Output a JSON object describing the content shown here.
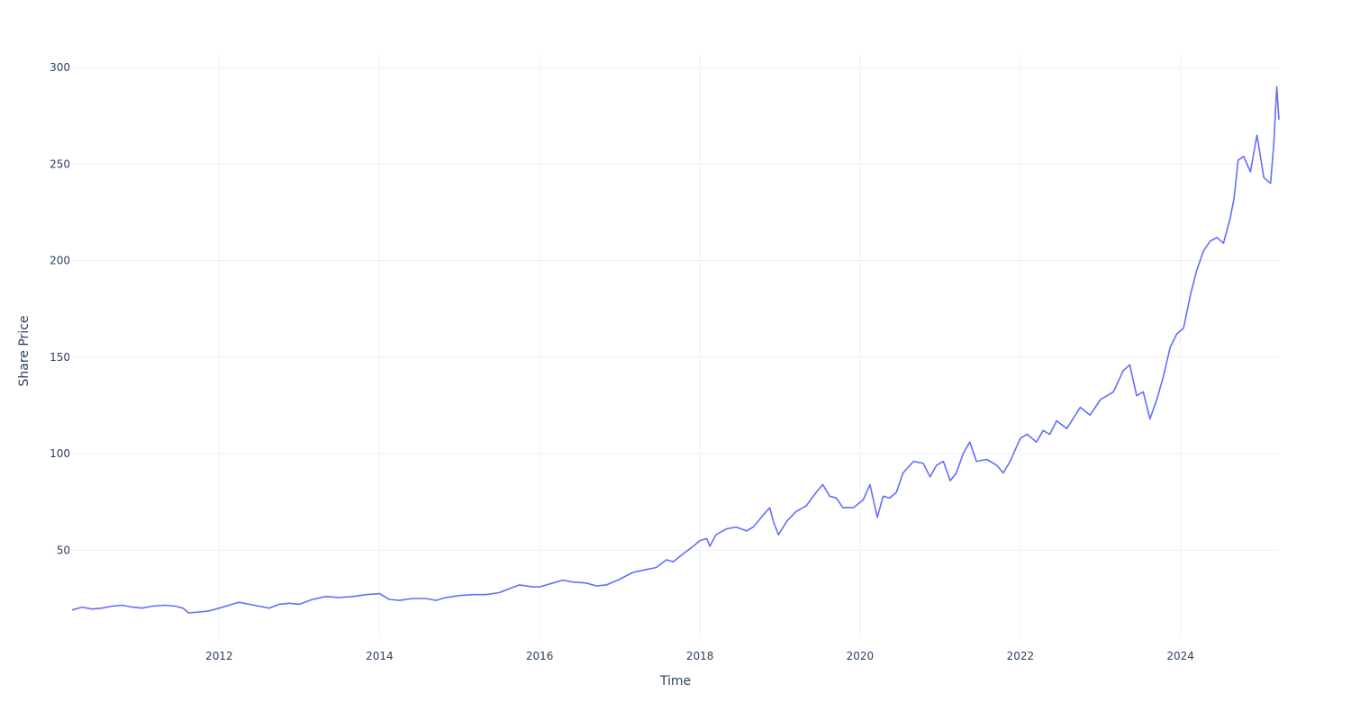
{
  "chart_data": {
    "type": "line",
    "title": "",
    "xlabel": "Time",
    "ylabel": "Share Price",
    "xlim": [
      "2010-03-01",
      "2025-03-25"
    ],
    "ylim": [
      4,
      307
    ],
    "x_ticks": [
      "2012",
      "2014",
      "2016",
      "2018",
      "2020",
      "2022",
      "2024"
    ],
    "y_ticks": [
      50,
      100,
      150,
      200,
      250,
      300
    ],
    "grid": true,
    "legend": "none",
    "series": [
      {
        "color": "#636efa",
        "points": [
          [
            "2010-03-01",
            19
          ],
          [
            "2010-04-15",
            20.5
          ],
          [
            "2010-06-01",
            19.5
          ],
          [
            "2010-07-15",
            20
          ],
          [
            "2010-09-01",
            21
          ],
          [
            "2010-10-15",
            21.5
          ],
          [
            "2010-12-01",
            20.5
          ],
          [
            "2011-01-15",
            20
          ],
          [
            "2011-03-01",
            21
          ],
          [
            "2011-05-01",
            21.5
          ],
          [
            "2011-06-15",
            21
          ],
          [
            "2011-07-20",
            20
          ],
          [
            "2011-08-15",
            17.5
          ],
          [
            "2011-10-01",
            18
          ],
          [
            "2011-11-15",
            18.5
          ],
          [
            "2012-01-01",
            20
          ],
          [
            "2012-03-01",
            22
          ],
          [
            "2012-04-01",
            23
          ],
          [
            "2012-05-15",
            22
          ],
          [
            "2012-07-01",
            21
          ],
          [
            "2012-08-15",
            20
          ],
          [
            "2012-10-01",
            22
          ],
          [
            "2012-11-15",
            22.5
          ],
          [
            "2013-01-01",
            22
          ],
          [
            "2013-03-01",
            24.5
          ],
          [
            "2013-05-01",
            26
          ],
          [
            "2013-07-01",
            25.5
          ],
          [
            "2013-09-01",
            26
          ],
          [
            "2013-11-01",
            27
          ],
          [
            "2014-01-01",
            27.5
          ],
          [
            "2014-02-15",
            24.5
          ],
          [
            "2014-04-01",
            24
          ],
          [
            "2014-06-01",
            25
          ],
          [
            "2014-08-01",
            25
          ],
          [
            "2014-09-15",
            24
          ],
          [
            "2014-11-01",
            25.5
          ],
          [
            "2015-01-01",
            26.5
          ],
          [
            "2015-03-01",
            27
          ],
          [
            "2015-05-01",
            27
          ],
          [
            "2015-07-01",
            28
          ],
          [
            "2015-08-15",
            30
          ],
          [
            "2015-10-01",
            32
          ],
          [
            "2015-12-01",
            31
          ],
          [
            "2016-01-01",
            31
          ],
          [
            "2016-03-01",
            33
          ],
          [
            "2016-04-15",
            34.5
          ],
          [
            "2016-06-01",
            33.5
          ],
          [
            "2016-08-01",
            33
          ],
          [
            "2016-09-15",
            31.5
          ],
          [
            "2016-11-01",
            32
          ],
          [
            "2017-01-01",
            35
          ],
          [
            "2017-03-01",
            38.5
          ],
          [
            "2017-05-01",
            40
          ],
          [
            "2017-06-15",
            41
          ],
          [
            "2017-08-01",
            45
          ],
          [
            "2017-09-01",
            44
          ],
          [
            "2017-10-15",
            48
          ],
          [
            "2017-12-01",
            52
          ],
          [
            "2018-01-01",
            55
          ],
          [
            "2018-02-01",
            56
          ],
          [
            "2018-02-15",
            52
          ],
          [
            "2018-03-15",
            58
          ],
          [
            "2018-05-01",
            61
          ],
          [
            "2018-06-15",
            62
          ],
          [
            "2018-08-01",
            60
          ],
          [
            "2018-09-01",
            62
          ],
          [
            "2018-10-15",
            68
          ],
          [
            "2018-11-15",
            72
          ],
          [
            "2018-12-01",
            65
          ],
          [
            "2018-12-25",
            58
          ],
          [
            "2019-02-01",
            65
          ],
          [
            "2019-03-15",
            70
          ],
          [
            "2019-05-01",
            73
          ],
          [
            "2019-06-15",
            80
          ],
          [
            "2019-07-15",
            84
          ],
          [
            "2019-08-15",
            78
          ],
          [
            "2019-09-15",
            77
          ],
          [
            "2019-10-15",
            72
          ],
          [
            "2019-12-01",
            72
          ],
          [
            "2020-01-15",
            76
          ],
          [
            "2020-02-15",
            84
          ],
          [
            "2020-03-20",
            67
          ],
          [
            "2020-04-15",
            78
          ],
          [
            "2020-05-15",
            77
          ],
          [
            "2020-06-15",
            80
          ],
          [
            "2020-07-15",
            90
          ],
          [
            "2020-09-01",
            96
          ],
          [
            "2020-10-15",
            95
          ],
          [
            "2020-11-15",
            88
          ],
          [
            "2020-12-15",
            94
          ],
          [
            "2021-01-15",
            96
          ],
          [
            "2021-02-15",
            86
          ],
          [
            "2021-03-15",
            90
          ],
          [
            "2021-04-15",
            100
          ],
          [
            "2021-05-15",
            106
          ],
          [
            "2021-06-15",
            96
          ],
          [
            "2021-08-01",
            97
          ],
          [
            "2021-09-15",
            94
          ],
          [
            "2021-10-15",
            90
          ],
          [
            "2021-11-15",
            96
          ],
          [
            "2022-01-01",
            108
          ],
          [
            "2022-02-01",
            110
          ],
          [
            "2022-03-15",
            106
          ],
          [
            "2022-04-15",
            112
          ],
          [
            "2022-05-15",
            110
          ],
          [
            "2022-06-15",
            117
          ],
          [
            "2022-08-01",
            113
          ],
          [
            "2022-10-01",
            124
          ],
          [
            "2022-11-15",
            120
          ],
          [
            "2023-01-01",
            128
          ],
          [
            "2023-03-01",
            132
          ],
          [
            "2023-04-15",
            143
          ],
          [
            "2023-05-15",
            146
          ],
          [
            "2023-06-15",
            130
          ],
          [
            "2023-07-15",
            132
          ],
          [
            "2023-08-15",
            118
          ],
          [
            "2023-09-15",
            128
          ],
          [
            "2023-10-15",
            140
          ],
          [
            "2023-11-15",
            155
          ],
          [
            "2023-12-15",
            162
          ],
          [
            "2024-01-15",
            165
          ],
          [
            "2024-02-15",
            182
          ],
          [
            "2024-03-15",
            195
          ],
          [
            "2024-04-15",
            205
          ],
          [
            "2024-05-15",
            210
          ],
          [
            "2024-06-15",
            212
          ],
          [
            "2024-07-15",
            209
          ],
          [
            "2024-08-15",
            222
          ],
          [
            "2024-09-01",
            232
          ],
          [
            "2024-09-20",
            252
          ],
          [
            "2024-10-15",
            254
          ],
          [
            "2024-11-15",
            246
          ],
          [
            "2024-12-15",
            265
          ],
          [
            "2025-01-15",
            243
          ],
          [
            "2025-02-15",
            240
          ],
          [
            "2025-03-01",
            260
          ],
          [
            "2025-03-15",
            290
          ],
          [
            "2025-03-25",
            273
          ]
        ]
      }
    ]
  }
}
